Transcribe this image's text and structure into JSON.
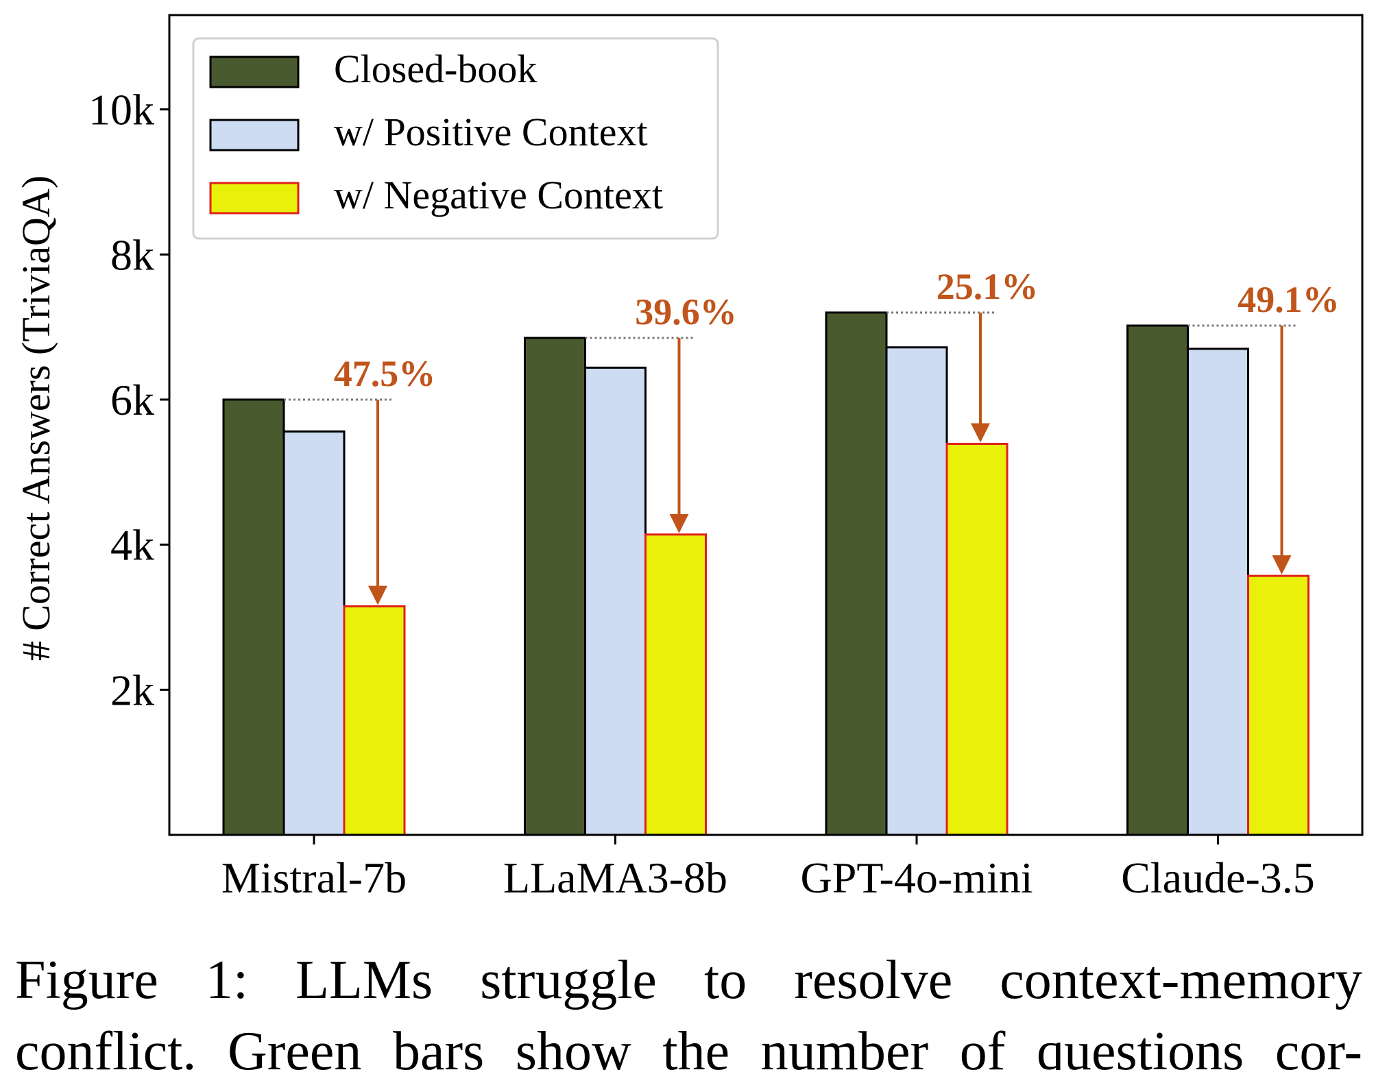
{
  "chart_data": {
    "type": "bar",
    "categories": [
      "Mistral-7b",
      "LLaMA3-8b",
      "GPT-4o-mini",
      "Claude-3.5"
    ],
    "series": [
      {
        "name": "Closed-book",
        "values": [
          6000,
          6850,
          7200,
          7020
        ],
        "color": "#4a5a2f",
        "stroke": "#000000"
      },
      {
        "name": "w/ Positive Context",
        "values": [
          5560,
          6440,
          6720,
          6700
        ],
        "color": "#cddcf2",
        "stroke": "#000000"
      },
      {
        "name": "w/ Negative Context",
        "values": [
          3150,
          4140,
          5390,
          3570
        ],
        "color": "#e9f00a",
        "stroke": "#e0201b"
      }
    ],
    "drops": [
      "47.5%",
      "39.6%",
      "25.1%",
      "49.1%"
    ],
    "drop_color": "#c0541b",
    "ylabel": "# Correct Answers (TriviaQA)",
    "xlabel": "",
    "ylim": [
      0,
      11300
    ],
    "yticks": [
      {
        "value": 2000,
        "label": "2k"
      },
      {
        "value": 4000,
        "label": "4k"
      },
      {
        "value": 6000,
        "label": "6k"
      },
      {
        "value": 8000,
        "label": "8k"
      },
      {
        "value": 10000,
        "label": "10k"
      }
    ],
    "grid": false,
    "legend_position": "top-left"
  },
  "caption": {
    "line1": "Figure 1: LLMs struggle to resolve context-memory",
    "line2": "conflict. Green bars show the number of questions cor-"
  }
}
